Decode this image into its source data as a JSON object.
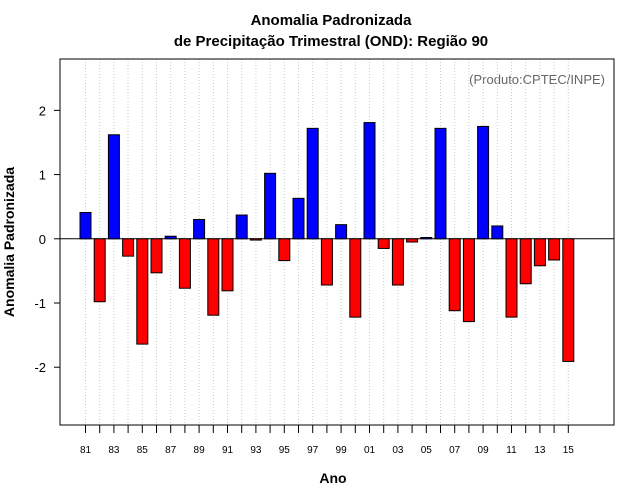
{
  "chart_data": {
    "type": "bar",
    "title": [
      "Anomalia Padronizada",
      "de Precipitação Trimestral (OND): Região 90"
    ],
    "xlabel": "Ano",
    "ylabel": "Anomalia Padronizada",
    "credit": "(Produto:CPTEC/INPE)",
    "ylim": [
      -2.9,
      2.8
    ],
    "yticks": [
      -2,
      -1,
      0,
      1,
      2
    ],
    "tick_labels": [
      "81",
      "83",
      "85",
      "87",
      "89",
      "91",
      "93",
      "95",
      "97",
      "99",
      "01",
      "03",
      "05",
      "07",
      "09",
      "11",
      "13",
      "15"
    ],
    "categories": [
      "1981",
      "1982",
      "1983",
      "1984",
      "1985",
      "1986",
      "1987",
      "1988",
      "1989",
      "1990",
      "1991",
      "1992",
      "1993",
      "1994",
      "1995",
      "1996",
      "1997",
      "1998",
      "1999",
      "2000",
      "2001",
      "2002",
      "2003",
      "2004",
      "2005",
      "2006",
      "2007",
      "2008",
      "2009",
      "2010",
      "2011",
      "2012",
      "2013",
      "2014",
      "2015"
    ],
    "values": [
      0.41,
      -0.98,
      1.62,
      -0.27,
      -1.64,
      -0.53,
      0.04,
      -0.77,
      0.3,
      -1.19,
      -0.81,
      0.37,
      -0.02,
      1.02,
      -0.34,
      0.63,
      1.72,
      -0.72,
      0.22,
      -1.22,
      1.81,
      -0.15,
      -0.72,
      -0.05,
      0.02,
      1.72,
      -1.12,
      -1.29,
      1.75,
      0.2,
      -1.22,
      -0.7,
      -0.42,
      -0.33,
      -1.91
    ],
    "colors": {
      "positive": "#0000ff",
      "negative": "#ff0000"
    },
    "grid": "vertical dotted"
  }
}
